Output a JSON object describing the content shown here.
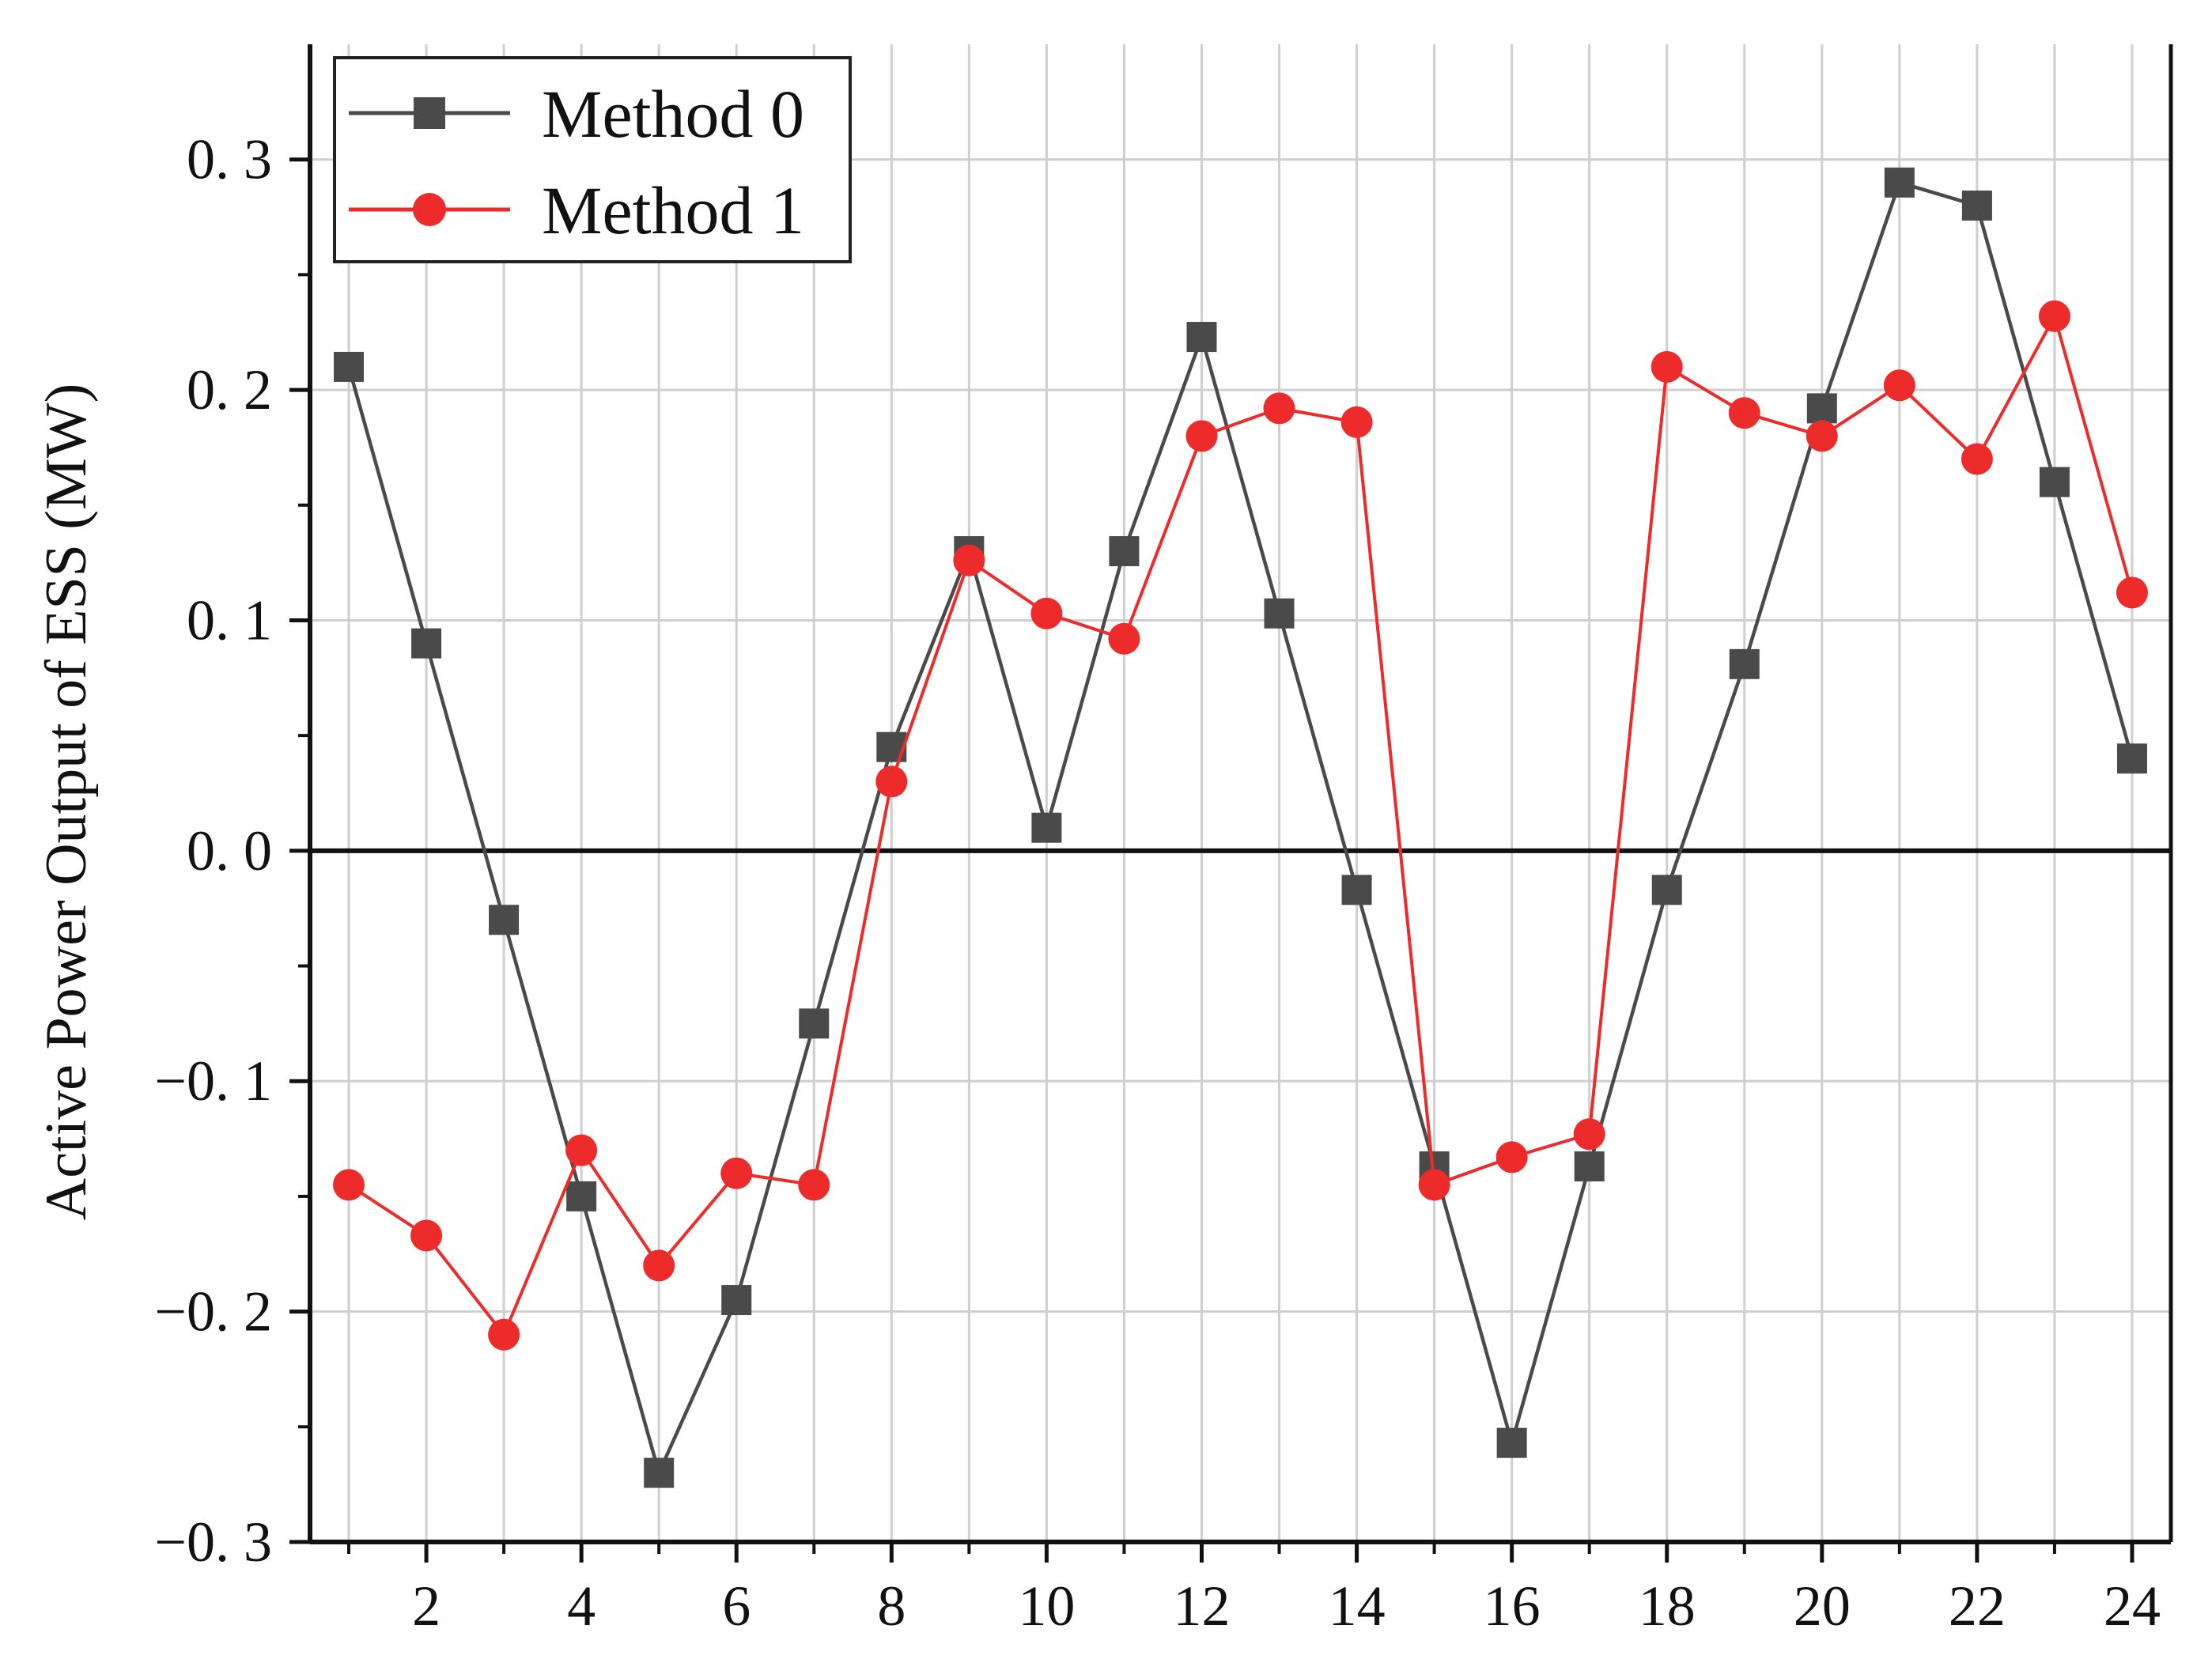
{
  "chart_data": {
    "type": "line",
    "title": "",
    "xlabel": "",
    "ylabel": "Active Power Output of ESS (MW)",
    "x": [
      1,
      2,
      3,
      4,
      5,
      6,
      7,
      8,
      9,
      10,
      11,
      12,
      13,
      14,
      15,
      16,
      17,
      18,
      19,
      20,
      21,
      22,
      23,
      24
    ],
    "xlim": [
      0.5,
      24.5
    ],
    "ylim": [
      -0.3,
      0.35
    ],
    "x_ticks": [
      2,
      4,
      6,
      8,
      10,
      12,
      14,
      16,
      18,
      20,
      22,
      24
    ],
    "x_tick_labels": [
      "2",
      "4",
      "6",
      "8",
      "10",
      "12",
      "14",
      "16",
      "18",
      "20",
      "22",
      "24"
    ],
    "y_ticks": [
      -0.3,
      -0.2,
      -0.1,
      0.0,
      0.1,
      0.2,
      0.3
    ],
    "y_tick_labels": [
      "−0. 3",
      "−0. 2",
      "−0. 1",
      "0. 0",
      "0. 1",
      "0. 2",
      "0. 3"
    ],
    "grid": true,
    "legend_position": "top-left",
    "series": [
      {
        "name": "Method 0",
        "color": "#4a4a4a",
        "marker": "square",
        "values": [
          0.21,
          0.09,
          -0.03,
          -0.15,
          -0.27,
          -0.195,
          -0.075,
          0.045,
          0.13,
          0.01,
          0.13,
          0.223,
          0.103,
          -0.017,
          -0.137,
          -0.257,
          -0.137,
          -0.017,
          0.081,
          0.192,
          0.29,
          0.28,
          0.16,
          0.04
        ]
      },
      {
        "name": "Method 1",
        "color": "#ee2b2b",
        "marker": "circle",
        "values": [
          -0.145,
          -0.167,
          -0.21,
          -0.13,
          -0.18,
          -0.14,
          -0.145,
          0.03,
          0.126,
          0.103,
          0.092,
          0.18,
          0.192,
          0.186,
          -0.145,
          -0.133,
          -0.123,
          0.21,
          0.19,
          0.18,
          0.202,
          0.17,
          0.232,
          0.112
        ]
      }
    ]
  }
}
